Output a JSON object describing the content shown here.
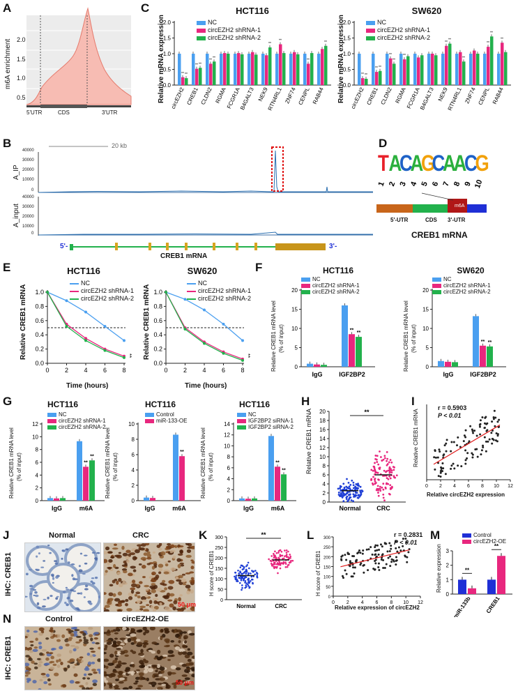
{
  "labels": {
    "A": "A",
    "B": "B",
    "C": "C",
    "D": "D",
    "E": "E",
    "F": "F",
    "G": "G",
    "H": "H",
    "I": "I",
    "J": "J",
    "K": "K",
    "L": "L",
    "M": "M",
    "N": "N"
  },
  "colors": {
    "nc": "#4a9ff0",
    "sh1": "#e8277e",
    "sh2": "#22b14c",
    "blue": "#1f2fd6",
    "pink": "#e8277e",
    "peak": "#2a6fb0"
  },
  "panelA": {
    "ylabel": "m6A enrichment",
    "yticks": [
      "0.5",
      "1.0",
      "1.5",
      "2.0"
    ],
    "regions": [
      "5'UTR",
      "CDS",
      "3'UTR"
    ]
  },
  "panelB": {
    "scale": "20 kb",
    "track1": "A_IP",
    "track2": "A_input",
    "yt1": [
      "40000",
      "30000",
      "20000",
      "10000",
      "0"
    ],
    "yt2": [
      "40000",
      "30000",
      "20000",
      "10000",
      "0"
    ],
    "five": "5'-",
    "three": "3'-",
    "gene": "CREB1 mRNA"
  },
  "panelC": {
    "titles": [
      "HCT116",
      "SW620"
    ],
    "ylabel": "Relative mRNA expression",
    "legend": [
      "NC",
      "circEZH2 shRNA-1",
      "circEZH2 shRNA-2"
    ],
    "yticks": [
      "0.0",
      "0.5",
      "1.0",
      "1.5",
      "2.0"
    ],
    "genes": [
      "circEZH2",
      "CREB1",
      "CLDN2",
      "RGMA",
      "FCGR1A",
      "B4GALT3",
      "NEK9",
      "RTN4RL1",
      "ZNF74",
      "CENPL",
      "RAB44"
    ],
    "hct": [
      [
        1,
        0.25,
        0.22
      ],
      [
        1,
        0.52,
        0.55
      ],
      [
        1,
        0.68,
        0.75
      ],
      [
        1,
        1.02,
        1.0
      ],
      [
        1,
        1.02,
        0.98
      ],
      [
        1,
        1.05,
        0.97
      ],
      [
        1,
        0.95,
        1.2
      ],
      [
        1,
        1.3,
        1.02
      ],
      [
        1,
        1.05,
        0.98
      ],
      [
        1,
        0.68,
        1.02
      ],
      [
        1,
        1.15,
        1.25
      ]
    ],
    "sw": [
      [
        1,
        0.22,
        0.2
      ],
      [
        1,
        0.42,
        0.45
      ],
      [
        1,
        0.85,
        0.68
      ],
      [
        1,
        0.82,
        0.92
      ],
      [
        1,
        0.88,
        0.95
      ],
      [
        1,
        1.0,
        0.95
      ],
      [
        1,
        1.25,
        1.32
      ],
      [
        1,
        1.05,
        0.75
      ],
      [
        1,
        1.1,
        1.0
      ],
      [
        1,
        1.22,
        1.55
      ],
      [
        1,
        1.35,
        1.05
      ]
    ],
    "sig": "**"
  },
  "panelD": {
    "motif": "TACAGCAACG",
    "positions": [
      "1",
      "2",
      "3",
      "4",
      "5",
      "6",
      "7",
      "8",
      "9",
      "10"
    ],
    "segments": [
      "5'-UTR",
      "CDS",
      "3'-UTR"
    ],
    "mark": "m6A",
    "gene": "CREB1 mRNA"
  },
  "panelE": {
    "titles": [
      "HCT116",
      "SW620"
    ],
    "ylabel": "Relative CREB1 mRNA",
    "xlabel": "Time (hours)",
    "legend": [
      "NC",
      "circEZH2 shRNA-1",
      "circEZH2 shRNA-2"
    ],
    "x": [
      0,
      2,
      4,
      6,
      8
    ],
    "yticks": [
      "0.0",
      "0.2",
      "0.4",
      "0.6",
      "0.8",
      "1.0"
    ],
    "hct": [
      [
        1.0,
        0.88,
        0.72,
        0.52,
        0.32
      ],
      [
        1.0,
        0.55,
        0.35,
        0.2,
        0.1
      ],
      [
        1.0,
        0.52,
        0.32,
        0.18,
        0.08
      ]
    ],
    "sw": [
      [
        1.0,
        0.9,
        0.75,
        0.55,
        0.32
      ],
      [
        1.0,
        0.5,
        0.3,
        0.16,
        0.06
      ],
      [
        1.0,
        0.48,
        0.28,
        0.14,
        0.04
      ]
    ],
    "sig": "**"
  },
  "panelF": {
    "titles": [
      "HCT116",
      "SW620"
    ],
    "ylabel1": "Relative CREB1 mRNA level",
    "ylabel2": "(% of input)",
    "legend": [
      "NC",
      "circEZH2 shRNA-1",
      "circEZH2 shRNA-2"
    ],
    "cats": [
      "IgG",
      "IGF2BP2"
    ],
    "hct": {
      "yticks": [
        "0",
        "5",
        "10",
        "15",
        "20"
      ],
      "max": 20,
      "vals": [
        [
          0.8,
          0.6,
          0.5
        ],
        [
          16,
          8.5,
          7.8
        ]
      ]
    },
    "sw": {
      "yticks": [
        "0",
        "5",
        "10",
        "15",
        "20"
      ],
      "max": 20,
      "vals": [
        [
          1.5,
          1.3,
          1.2
        ],
        [
          13.2,
          5.5,
          5.3
        ]
      ]
    },
    "sig": "**"
  },
  "panelG": [
    {
      "title": "HCT116",
      "legend": [
        "NC",
        "circEZH2 shRNA-1",
        "circEZH2 shRNA-2"
      ],
      "yticks": [
        "0",
        "2",
        "4",
        "6",
        "8",
        "10",
        "12"
      ],
      "max": 12,
      "cats": [
        "IgG",
        "m6A"
      ],
      "vals": [
        [
          0.4,
          0.35,
          0.4
        ],
        [
          9.3,
          5.3,
          6.3
        ]
      ]
    },
    {
      "title": "HCT116",
      "legend": [
        "Control",
        "miR-133-OE"
      ],
      "yticks": [
        "0",
        "2",
        "4",
        "6",
        "8",
        "10"
      ],
      "max": 10,
      "cats": [
        "IgG",
        "m6A"
      ],
      "vals": [
        [
          0.4,
          0.35
        ],
        [
          8.6,
          5.8
        ]
      ]
    },
    {
      "title": "HCT116",
      "legend": [
        "NC",
        "IGF2BP2 siRNA-1",
        "IGF2BP2 siRNA-2"
      ],
      "yticks": [
        "0",
        "2",
        "4",
        "6",
        "8",
        "10",
        "12",
        "14"
      ],
      "max": 14,
      "cats": [
        "IgG",
        "m6A"
      ],
      "vals": [
        [
          0.4,
          0.35,
          0.4
        ],
        [
          11.8,
          6.2,
          4.8
        ]
      ]
    }
  ],
  "panelG_ylabel1": "Relative CREB1 mRNA level",
  "panelG_ylabel2": "(% of input)",
  "panelG_sig": "**",
  "panelH": {
    "ylabel": "Relative CREB1 mRNA",
    "yticks": [
      "0",
      "2",
      "4",
      "6",
      "8",
      "10",
      "12",
      "14",
      "16",
      "18",
      "20"
    ],
    "cats": [
      "Normal",
      "CRC"
    ],
    "sig": "**"
  },
  "panelI": {
    "r": "r = 0.5903",
    "p": "P < 0.01",
    "ylabel": "Relative CREB1 mRNA",
    "xlabel": "Relative circEZH2 expression",
    "xticks": [
      "0",
      "2",
      "4",
      "6",
      "8",
      "10",
      "12"
    ]
  },
  "panelJ": {
    "side": "IHC: CREB1",
    "cols": [
      "Normal",
      "CRC"
    ],
    "scale": "50 μm"
  },
  "panelK": {
    "ylabel": "H score of CREB1",
    "yticks": [
      "0",
      "50",
      "100",
      "150",
      "200",
      "250",
      "300"
    ],
    "cats": [
      "Normal",
      "CRC"
    ],
    "sig": "**"
  },
  "panelL": {
    "r": "r = 0.2831",
    "p": "P < 0.01",
    "ylabel": "H score of CREB1",
    "xlabel": "Relative expression of circEZH2",
    "xticks": [
      "0",
      "2",
      "4",
      "6",
      "8",
      "10",
      "12"
    ],
    "yticks": [
      "0",
      "50",
      "100",
      "150",
      "200",
      "250",
      "300"
    ]
  },
  "panelM": {
    "ylabel": "Relative expression",
    "legend": [
      "Control",
      "circEZH2-OE"
    ],
    "cats": [
      "miR-133b",
      "CREB1"
    ],
    "yticks": [
      "0",
      "1",
      "2",
      "3"
    ],
    "vals": [
      [
        1.0,
        0.4
      ],
      [
        1.0,
        2.65
      ]
    ],
    "sig": "**"
  },
  "panelN": {
    "side": "IHC: CREB1",
    "cols": [
      "Control",
      "circEZH2-OE"
    ],
    "scale": "50 μm"
  }
}
